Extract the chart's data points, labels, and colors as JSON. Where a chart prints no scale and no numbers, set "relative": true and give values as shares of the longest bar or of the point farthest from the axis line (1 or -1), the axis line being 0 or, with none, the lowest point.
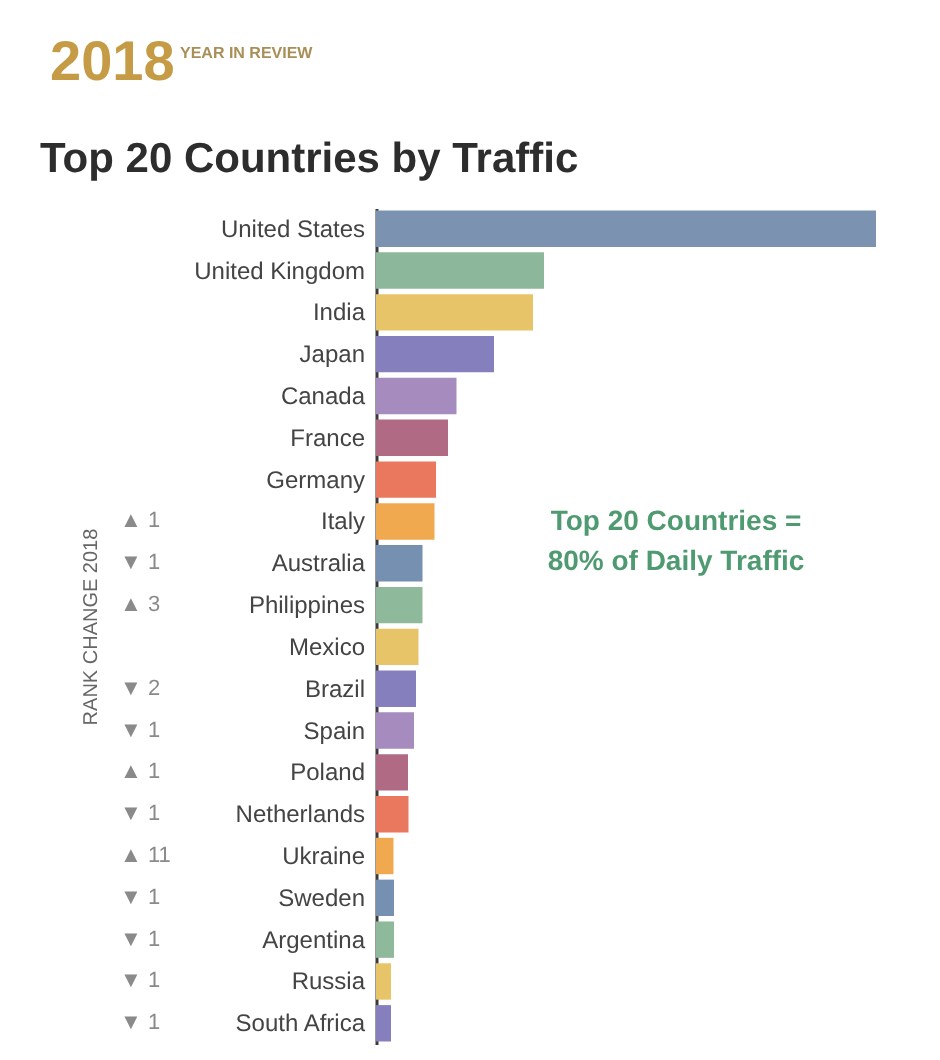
{
  "chart_data": {
    "type": "bar",
    "orientation": "horizontal",
    "relative": true,
    "title": "Top 20 Countries by Traffic",
    "ylabel": "RANK CHANGE 2018",
    "categories": [
      "United States",
      "United Kingdom",
      "India",
      "Japan",
      "Canada",
      "France",
      "Germany",
      "Italy",
      "Australia",
      "Philippines",
      "Mexico",
      "Brazil",
      "Spain",
      "Poland",
      "Netherlands",
      "Ukraine",
      "Sweden",
      "Argentina",
      "Russia",
      "South Africa"
    ],
    "y2_categories": [
      null,
      null,
      null,
      null,
      null,
      null,
      null,
      "▲ 1",
      "▼ 1",
      "▲ 3",
      null,
      "▼ 2",
      "▼ 1",
      "▲ 1",
      "▼ 1",
      "▲ 11",
      "▼ 1",
      "▼ 1",
      "▼ 1",
      "▼ 1"
    ],
    "values": [
      1,
      0.336,
      0.314,
      0.236,
      0.161,
      0.144,
      0.12,
      0.117,
      0.093,
      0.093,
      0.085,
      0.08,
      0.076,
      0.064,
      0.065,
      0.035,
      0.036,
      0.036,
      0.03,
      0.03
    ],
    "colors": [
      "#7b93b0",
      "#8db79a",
      "#e8c468",
      "#8580bd",
      "#a68bbf",
      "#b06a84",
      "#e9785f",
      "#f0a94f",
      "#7590b0",
      "#8fb99b",
      "#e8c468",
      "#8580bd",
      "#a68bbf",
      "#b06a84",
      "#e9785f",
      "#f0a94f",
      "#7590b0",
      "#8fb99b",
      "#e8c468",
      "#8580bd"
    ],
    "annotations": [
      "2018",
      "YEAR IN REVIEW",
      "Top 20 Countries =\n80% of Daily Traffic"
    ]
  }
}
